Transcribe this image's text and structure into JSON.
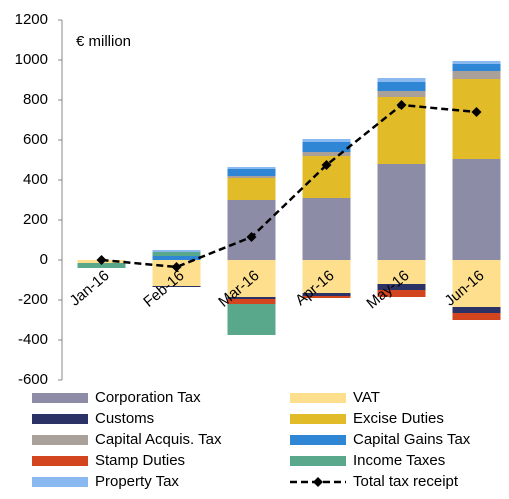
{
  "chart_data": {
    "type": "bar",
    "stacked": true,
    "annotation": "€ million",
    "categories": [
      "Jan-16",
      "Feb-16",
      "Mar-16",
      "Apr-16",
      "May-16",
      "Jun-16"
    ],
    "ylim": [
      -600,
      1200
    ],
    "yticks": [
      -600,
      -400,
      -200,
      0,
      200,
      400,
      600,
      800,
      1000,
      1200
    ],
    "series": [
      {
        "name": "Corporation Tax",
        "color": "#8c8ca6",
        "values": [
          0,
          0,
          300,
          310,
          480,
          505
        ]
      },
      {
        "name": "VAT",
        "color": "#fddf8e",
        "values": [
          -15,
          -130,
          -185,
          -165,
          -120,
          -235
        ]
      },
      {
        "name": "Customs",
        "color": "#2b3266",
        "values": [
          0,
          -5,
          -10,
          -15,
          -30,
          -30
        ]
      },
      {
        "name": "Excise Duties",
        "color": "#e1bc28",
        "values": [
          0,
          0,
          110,
          210,
          335,
          400
        ]
      },
      {
        "name": "Capital Acquis. Tax",
        "color": "#a8a099",
        "values": [
          0,
          0,
          10,
          20,
          30,
          40
        ]
      },
      {
        "name": "Capital Gains Tax",
        "color": "#2f86d4",
        "values": [
          0,
          20,
          35,
          50,
          45,
          35
        ]
      },
      {
        "name": "Stamp Duties",
        "color": "#d2451e",
        "values": [
          0,
          0,
          -25,
          -10,
          -35,
          -35
        ]
      },
      {
        "name": "Income Taxes",
        "color": "#5aa88c",
        "values": [
          -25,
          20,
          -155,
          0,
          0,
          0
        ]
      },
      {
        "name": "Property Tax",
        "color": "#8ab8f0",
        "values": [
          0,
          10,
          10,
          15,
          20,
          15
        ]
      },
      {
        "name": "Total tax receipt",
        "color": "#000000",
        "type": "line",
        "values": [
          0,
          -35,
          115,
          475,
          775,
          740
        ]
      }
    ]
  }
}
